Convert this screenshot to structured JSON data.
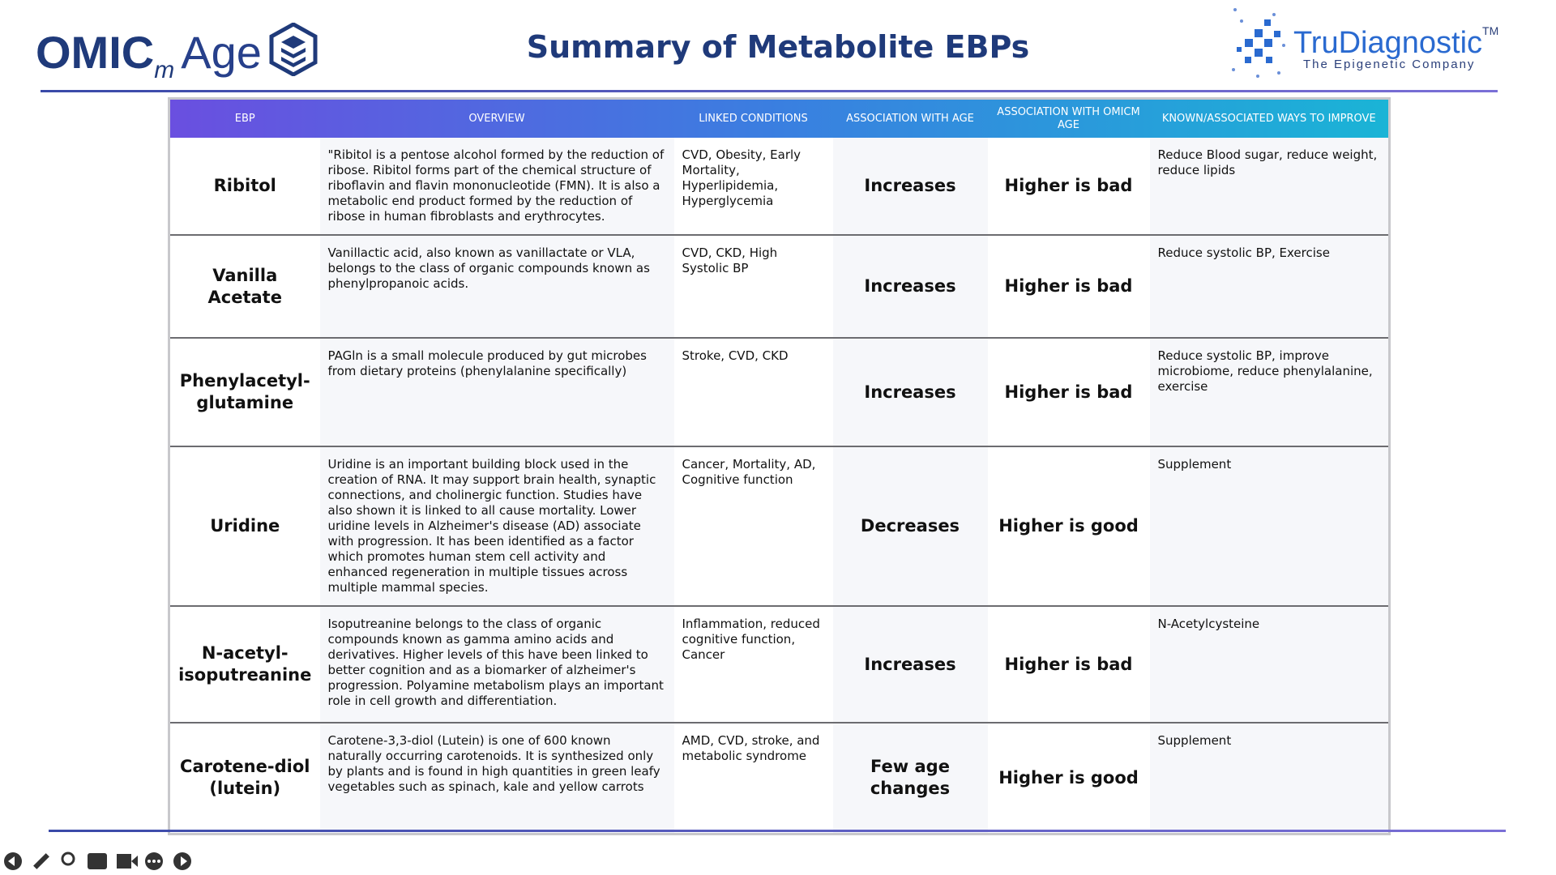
{
  "logo": {
    "brand": "OMIC",
    "subscript": "m",
    "suffix": "Age"
  },
  "company": {
    "name": "TruDiagnostic",
    "tm": "TM",
    "tagline": "The Epigenetic Company"
  },
  "title": "Summary of Metabolite EBPs",
  "table": {
    "headers": [
      "EBP",
      "OVERVIEW",
      "LINKED CONDITIONS",
      "ASSOCIATION WITH AGE",
      "ASSOCIATION WITH OMICM AGE",
      "KNOWN/ASSOCIATED WAYS TO IMPROVE"
    ],
    "rows": [
      [
        "Ribitol",
        "\"Ribitol is a pentose alcohol formed by the reduction of ribose. Ribitol forms part of the chemical structure of riboflavin and flavin mononucleotide (FMN). It is also a metabolic end product formed by the reduction of ribose in human fibroblasts and erythrocytes.",
        "CVD, Obesity, Early Mortality, Hyperlipidemia, Hyperglycemia",
        "Increases",
        "Higher is bad",
        "Reduce Blood sugar, reduce weight, reduce lipids"
      ],
      [
        "Vanilla Acetate",
        "Vanillactic acid, also known as vanillactate or VLA, belongs to the class of organic compounds known as phenylpropanoic acids.",
        "CVD, CKD, High Systolic BP",
        "Increases",
        "Higher is bad",
        "Reduce systolic BP, Exercise"
      ],
      [
        "Phenylacetyl-glutamine",
        "PAGln is a small molecule produced by gut microbes from dietary proteins (phenylalanine specifically)",
        "Stroke, CVD, CKD",
        "Increases",
        "Higher is bad",
        "Reduce systolic BP, improve microbiome, reduce phenylalanine, exercise"
      ],
      [
        "Uridine",
        "Uridine is an important building block used in the creation of RNA. It may support brain health, synaptic connections, and cholinergic function. Studies have also shown it is linked to all cause mortality. Lower uridine levels in Alzheimer's disease (AD) associate with progression. It has been identified as a factor which promotes human stem cell activity and enhanced regeneration in multiple tissues across multiple mammal species.",
        "Cancer, Mortality, AD, Cognitive function",
        "Decreases",
        "Higher is good",
        "Supplement"
      ],
      [
        "N-acetyl-isoputreanine",
        "Isoputreanine belongs to the class of organic compounds known as gamma amino acids and derivatives. Higher levels of this have been linked to better cognition and as a biomarker of alzheimer's progression. Polyamine metabolism plays an important role in cell growth and differentiation.",
        "Inflammation, reduced cognitive function, Cancer",
        "Increases",
        "Higher is bad",
        "N-Acetylcysteine"
      ],
      [
        "Carotene-diol (lutein)",
        "Carotene-3,3-diol (Lutein) is one of 600 known naturally occurring carotenoids. It is synthesized only by plants and is found in high quantities in green leafy vegetables such as spinach, kale and yellow carrots",
        "AMD, CVD, stroke, and metabolic syndrome",
        "Few age changes",
        "Higher is good",
        "Supplement"
      ]
    ]
  }
}
